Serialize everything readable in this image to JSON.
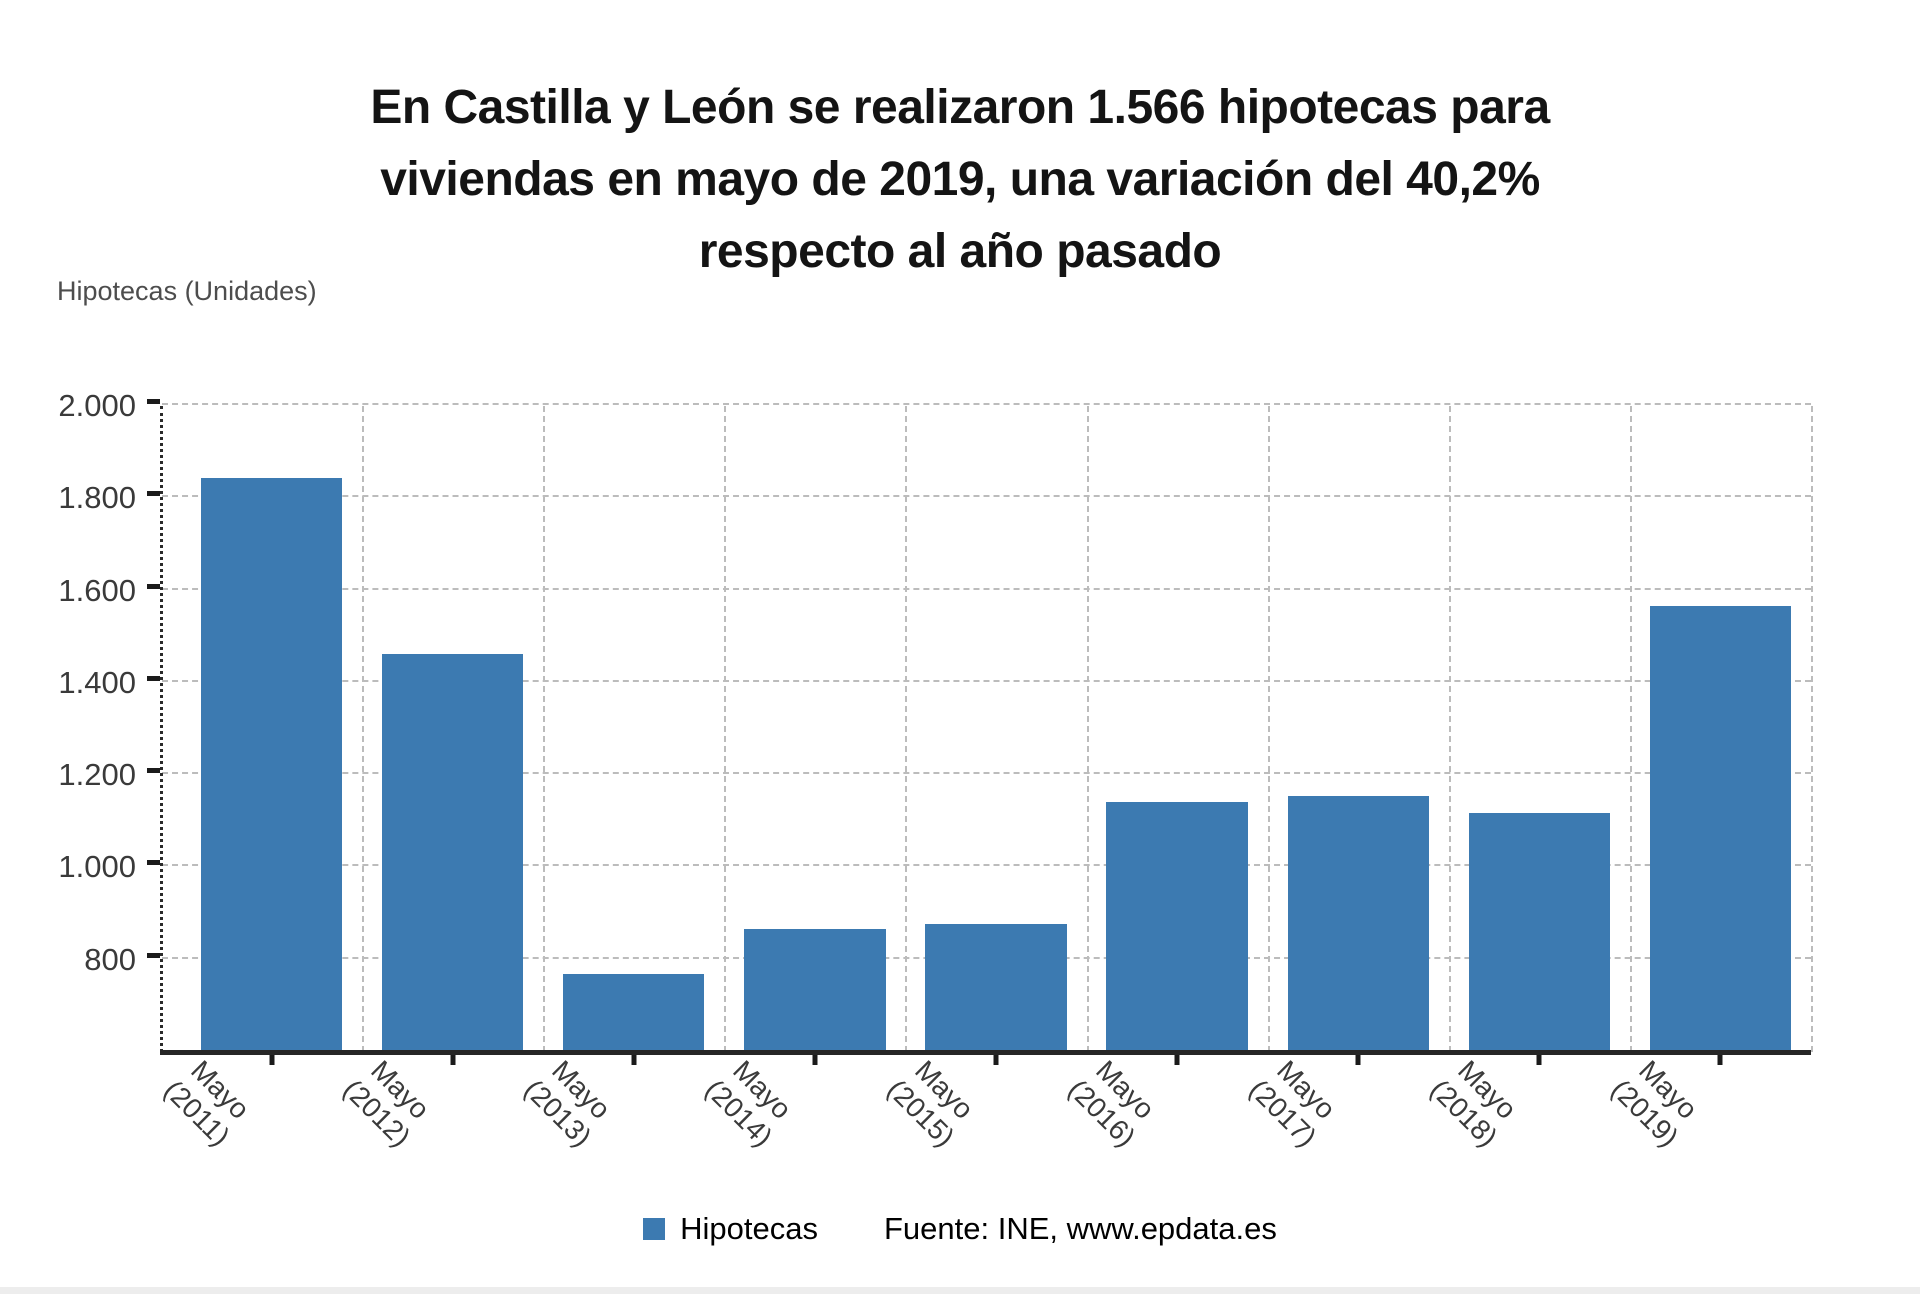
{
  "title": {
    "lines": [
      "En Castilla y León se realizaron 1.566 hipotecas para",
      "viviendas en mayo de 2019, una variación del 40,2%",
      "respecto al año pasado"
    ]
  },
  "axes": {
    "y_title": "Hipotecas (Unidades)"
  },
  "legend": {
    "label": "Hipotecas",
    "source": "Fuente: INE, www.epdata.es"
  },
  "colors": {
    "bar": "#3c7ab1",
    "gridline": "#bcbcbc",
    "axis": "#262626",
    "title_text": "#141414",
    "tick_text": "#3a3a3a"
  },
  "chart_data": {
    "type": "bar",
    "title": "En Castilla y León se realizaron 1.566 hipotecas para viviendas en mayo de 2019, una variación del 40,2% respecto al año pasado",
    "xlabel": "",
    "ylabel": "Hipotecas (Unidades)",
    "series_name": "Hipotecas",
    "categories": [
      "Mayo (2011)",
      "Mayo (2012)",
      "Mayo (2013)",
      "Mayo (2014)",
      "Mayo (2015)",
      "Mayo (2016)",
      "Mayo (2017)",
      "Mayo (2018)",
      "Mayo (2019)"
    ],
    "values": [
      1845,
      1462,
      768,
      866,
      878,
      1141,
      1155,
      1117,
      1566
    ],
    "highlight_value": 1566,
    "variation_pct": "40,2%",
    "ylim": [
      600,
      2000
    ],
    "yticks": [
      800,
      1000,
      1200,
      1400,
      1600,
      1800,
      2000
    ],
    "ytick_labels": [
      "800",
      "1.000",
      "1.200",
      "1.400",
      "1.600",
      "1.800",
      "2.000"
    ],
    "grid": "dashed",
    "legend_position": "bottom"
  }
}
